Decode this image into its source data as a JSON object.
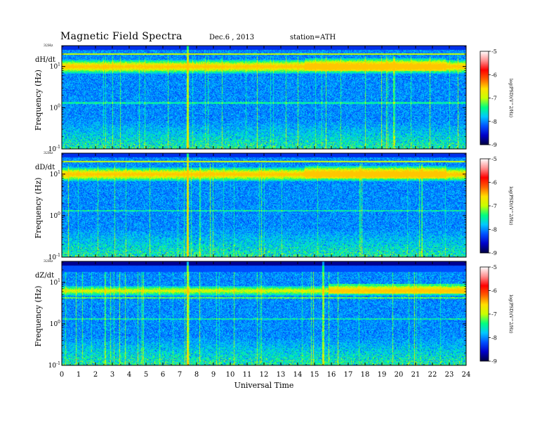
{
  "header": {
    "title": "Magnetic Field Spectra",
    "date": "Dec.6 , 2013",
    "station": "station=ATH"
  },
  "chart_data": [
    {
      "type": "heatmap",
      "panel_label": "dH/dt",
      "ylabel": "Frequency (Hz)",
      "top_label": "32Hz",
      "yticks": [
        {
          "value": 10,
          "mantissa": "10",
          "exp": "1"
        },
        {
          "value": 1,
          "mantissa": "10",
          "exp": "0"
        },
        {
          "value": 0.1,
          "mantissa": "10",
          "exp": "-1"
        }
      ],
      "ylim": [
        0.1,
        32
      ],
      "yscale": "log",
      "xlim": [
        0,
        24
      ],
      "color_scale": {
        "label": "log(PSD)(V^2/Hz)",
        "ticks": [
          "-5",
          "-6",
          "-7",
          "-8",
          "-9"
        ],
        "range": [
          -9,
          -5
        ]
      }
    },
    {
      "type": "heatmap",
      "panel_label": "dD/dt",
      "ylabel": "Frequency (Hz)",
      "top_label": "32Hz",
      "yticks": [
        {
          "value": 10,
          "mantissa": "10",
          "exp": "1"
        },
        {
          "value": 1,
          "mantissa": "10",
          "exp": "0"
        },
        {
          "value": 0.1,
          "mantissa": "10",
          "exp": "-1"
        }
      ],
      "ylim": [
        0.1,
        32
      ],
      "yscale": "log",
      "xlim": [
        0,
        24
      ],
      "color_scale": {
        "label": "log(PSD)(V^2/Hz)",
        "ticks": [
          "-5",
          "-6",
          "-7",
          "-8",
          "-9"
        ],
        "range": [
          -9,
          -5
        ]
      }
    },
    {
      "type": "heatmap",
      "panel_label": "dZ/dt",
      "ylabel": "Frequency (Hz)",
      "top_label": "32Hz",
      "yticks": [
        {
          "value": 10,
          "mantissa": "10",
          "exp": "1"
        },
        {
          "value": 1,
          "mantissa": "10",
          "exp": "0"
        },
        {
          "value": 0.1,
          "mantissa": "10",
          "exp": "-1"
        }
      ],
      "ylim": [
        0.1,
        32
      ],
      "yscale": "log",
      "xlim": [
        0,
        24
      ],
      "xlabel": "Universal Time",
      "xticks": [
        "0",
        "1",
        "2",
        "3",
        "4",
        "5",
        "6",
        "7",
        "8",
        "9",
        "10",
        "11",
        "12",
        "13",
        "14",
        "15",
        "16",
        "17",
        "18",
        "19",
        "20",
        "21",
        "22",
        "23",
        "24"
      ],
      "color_scale": {
        "label": "log(PSD)(V^2/Hz)",
        "ticks": [
          "-5",
          "-6",
          "-7",
          "-8",
          "-9"
        ],
        "range": [
          -9,
          -5
        ]
      }
    }
  ],
  "colors": {
    "scale": [
      "#000040",
      "#0000c8",
      "#0050ff",
      "#00c8ff",
      "#00ff80",
      "#c8ff00",
      "#ffe000",
      "#ff6000",
      "#ff0000",
      "#ff9090",
      "#ffffff"
    ]
  }
}
